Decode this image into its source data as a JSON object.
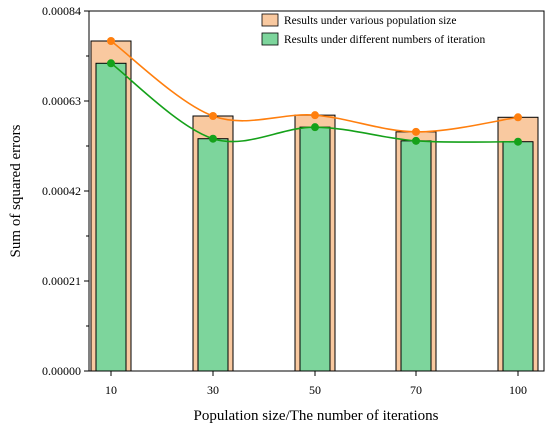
{
  "chart_data": {
    "type": "bar",
    "xlabel": "Population size/The number of iterations",
    "ylabel": "Sum of squared errors",
    "categories": [
      "10",
      "30",
      "50",
      "70",
      "100"
    ],
    "ylim": [
      0,
      0.00084
    ],
    "yticks": [
      "0.00000",
      "0.00021",
      "0.00042",
      "0.00063",
      "0.00084"
    ],
    "yticks_values": [
      0,
      0.00021,
      0.00042,
      0.00063,
      0.00084
    ],
    "grid": false,
    "legend_position": "top-right",
    "series": [
      {
        "name": "Results under various population size",
        "values": [
          0.00077,
          0.000595,
          0.000597,
          0.000558,
          0.000592
        ],
        "color": "#F9C9A0",
        "line_color": "#FF7F0E"
      },
      {
        "name": "Results under different numbers of iteration",
        "values": [
          0.000718,
          0.000542,
          0.000569,
          0.000537,
          0.000535
        ],
        "color": "#7DD59C",
        "line_color": "#15A11A"
      }
    ]
  }
}
